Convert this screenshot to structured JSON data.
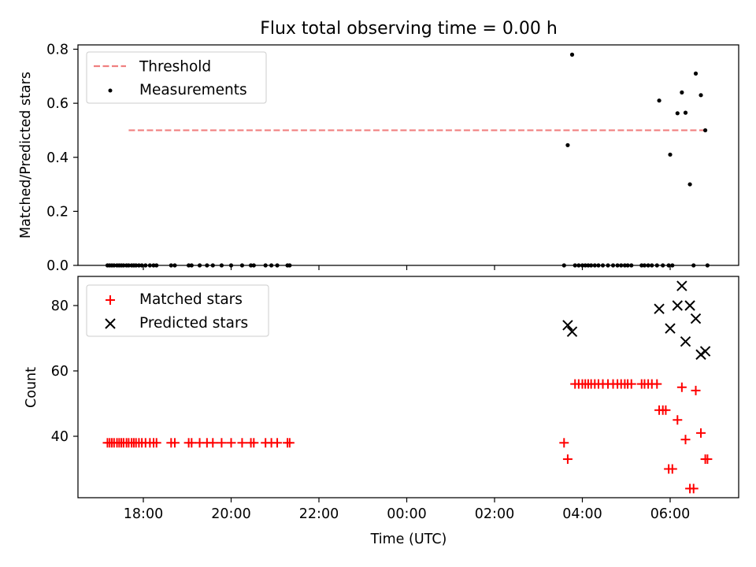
{
  "title": "Flux total observing time = 0.00 h",
  "chart_data": [
    {
      "type": "scatter",
      "panel": "top",
      "ylabel": "Matched/Predicted stars",
      "xlabel": "",
      "ylim": [
        0,
        0.82
      ],
      "yticks": [
        "0.0",
        "0.2",
        "0.4",
        "0.6",
        "0.8"
      ],
      "xticks": [
        "18:00",
        "20:00",
        "22:00",
        "00:00",
        "02:00",
        "04:00",
        "06:00"
      ],
      "legend_position": "top-left",
      "threshold": {
        "name": "Threshold",
        "y": 0.5,
        "x_start": "17:40",
        "x_end": "06:50",
        "color": "#f08080",
        "style": "dashed"
      },
      "measurements": {
        "name": "Measurements",
        "color": "#000000",
        "points": [
          [
            "17:11",
            0
          ],
          [
            "17:14",
            0
          ],
          [
            "17:17",
            0
          ],
          [
            "17:20",
            0
          ],
          [
            "17:24",
            0
          ],
          [
            "17:27",
            0
          ],
          [
            "17:30",
            0
          ],
          [
            "17:33",
            0
          ],
          [
            "17:37",
            0
          ],
          [
            "17:40",
            0
          ],
          [
            "17:44",
            0
          ],
          [
            "17:47",
            0
          ],
          [
            "17:50",
            0
          ],
          [
            "17:54",
            0
          ],
          [
            "17:58",
            0
          ],
          [
            "18:03",
            0
          ],
          [
            "18:09",
            0
          ],
          [
            "18:14",
            0
          ],
          [
            "18:18",
            0
          ],
          [
            "18:38",
            0
          ],
          [
            "18:43",
            0
          ],
          [
            "19:02",
            0
          ],
          [
            "19:06",
            0
          ],
          [
            "19:17",
            0
          ],
          [
            "19:27",
            0
          ],
          [
            "19:35",
            0
          ],
          [
            "19:47",
            0
          ],
          [
            "20:00",
            0
          ],
          [
            "20:15",
            0
          ],
          [
            "20:27",
            0
          ],
          [
            "20:31",
            0
          ],
          [
            "20:47",
            0
          ],
          [
            "20:55",
            0
          ],
          [
            "21:03",
            0
          ],
          [
            "21:17",
            0
          ],
          [
            "21:20",
            0
          ],
          [
            "03:35",
            0
          ],
          [
            "03:40",
            0.445
          ],
          [
            "03:46",
            0.78
          ],
          [
            "03:50",
            0
          ],
          [
            "03:55",
            0
          ],
          [
            "04:00",
            0
          ],
          [
            "04:04",
            0
          ],
          [
            "04:08",
            0
          ],
          [
            "04:12",
            0
          ],
          [
            "04:17",
            0
          ],
          [
            "04:22",
            0
          ],
          [
            "04:28",
            0
          ],
          [
            "04:35",
            0
          ],
          [
            "04:42",
            0
          ],
          [
            "04:48",
            0
          ],
          [
            "04:53",
            0
          ],
          [
            "04:58",
            0
          ],
          [
            "05:02",
            0
          ],
          [
            "05:07",
            0
          ],
          [
            "05:21",
            0
          ],
          [
            "05:25",
            0
          ],
          [
            "05:30",
            0
          ],
          [
            "05:35",
            0
          ],
          [
            "05:42",
            0
          ],
          [
            "05:45",
            0.61
          ],
          [
            "05:50",
            0
          ],
          [
            "05:58",
            0
          ],
          [
            "06:00",
            0.41
          ],
          [
            "06:03",
            0
          ],
          [
            "06:10",
            0.563
          ],
          [
            "06:16",
            0.64
          ],
          [
            "06:21",
            0.565
          ],
          [
            "06:27",
            0.3
          ],
          [
            "06:32",
            0
          ],
          [
            "06:35",
            0.71
          ],
          [
            "06:42",
            0.63
          ],
          [
            "06:48",
            0.5
          ],
          [
            "06:51",
            0
          ]
        ]
      }
    },
    {
      "type": "scatter",
      "panel": "bottom",
      "ylabel": "Count",
      "xlabel": "Time (UTC)",
      "ylim": [
        21,
        90
      ],
      "yticks": [
        "40",
        "60",
        "80"
      ],
      "xticks": [
        "18:00",
        "20:00",
        "22:00",
        "00:00",
        "02:00",
        "04:00",
        "06:00"
      ],
      "legend_position": "top-left",
      "series": [
        {
          "name": "Matched stars",
          "marker": "+",
          "color": "#ff0000",
          "points": [
            [
              "17:11",
              38
            ],
            [
              "17:14",
              38
            ],
            [
              "17:17",
              38
            ],
            [
              "17:20",
              38
            ],
            [
              "17:24",
              38
            ],
            [
              "17:27",
              38
            ],
            [
              "17:30",
              38
            ],
            [
              "17:33",
              38
            ],
            [
              "17:37",
              38
            ],
            [
              "17:40",
              38
            ],
            [
              "17:44",
              38
            ],
            [
              "17:47",
              38
            ],
            [
              "17:50",
              38
            ],
            [
              "17:54",
              38
            ],
            [
              "17:58",
              38
            ],
            [
              "18:03",
              38
            ],
            [
              "18:09",
              38
            ],
            [
              "18:14",
              38
            ],
            [
              "18:18",
              38
            ],
            [
              "18:38",
              38
            ],
            [
              "18:43",
              38
            ],
            [
              "19:02",
              38
            ],
            [
              "19:06",
              38
            ],
            [
              "19:17",
              38
            ],
            [
              "19:27",
              38
            ],
            [
              "19:35",
              38
            ],
            [
              "19:47",
              38
            ],
            [
              "20:00",
              38
            ],
            [
              "20:15",
              38
            ],
            [
              "20:27",
              38
            ],
            [
              "20:31",
              38
            ],
            [
              "20:47",
              38
            ],
            [
              "20:55",
              38
            ],
            [
              "21:03",
              38
            ],
            [
              "21:17",
              38
            ],
            [
              "21:20",
              38
            ],
            [
              "03:35",
              38
            ],
            [
              "03:40",
              33
            ],
            [
              "03:50",
              56
            ],
            [
              "03:55",
              56
            ],
            [
              "04:00",
              56
            ],
            [
              "04:04",
              56
            ],
            [
              "04:08",
              56
            ],
            [
              "04:12",
              56
            ],
            [
              "04:17",
              56
            ],
            [
              "04:22",
              56
            ],
            [
              "04:28",
              56
            ],
            [
              "04:35",
              56
            ],
            [
              "04:42",
              56
            ],
            [
              "04:48",
              56
            ],
            [
              "04:53",
              56
            ],
            [
              "04:58",
              56
            ],
            [
              "05:02",
              56
            ],
            [
              "05:07",
              56
            ],
            [
              "05:21",
              56
            ],
            [
              "05:25",
              56
            ],
            [
              "05:30",
              56
            ],
            [
              "05:35",
              56
            ],
            [
              "05:42",
              56
            ],
            [
              "05:45",
              48
            ],
            [
              "05:50",
              48
            ],
            [
              "05:54",
              48
            ],
            [
              "05:58",
              30
            ],
            [
              "06:03",
              30
            ],
            [
              "06:10",
              45
            ],
            [
              "06:16",
              55
            ],
            [
              "06:21",
              39
            ],
            [
              "06:27",
              24
            ],
            [
              "06:32",
              24
            ],
            [
              "06:35",
              54
            ],
            [
              "06:42",
              41
            ],
            [
              "06:48",
              33
            ],
            [
              "06:51",
              33
            ]
          ]
        },
        {
          "name": "Predicted stars",
          "marker": "x",
          "color": "#000000",
          "points": [
            [
              "03:40",
              74
            ],
            [
              "03:46",
              72
            ],
            [
              "05:45",
              79
            ],
            [
              "06:00",
              73
            ],
            [
              "06:10",
              80
            ],
            [
              "06:16",
              86
            ],
            [
              "06:21",
              69
            ],
            [
              "06:27",
              80
            ],
            [
              "06:35",
              76
            ],
            [
              "06:42",
              65
            ],
            [
              "06:48",
              66
            ]
          ]
        }
      ]
    }
  ]
}
